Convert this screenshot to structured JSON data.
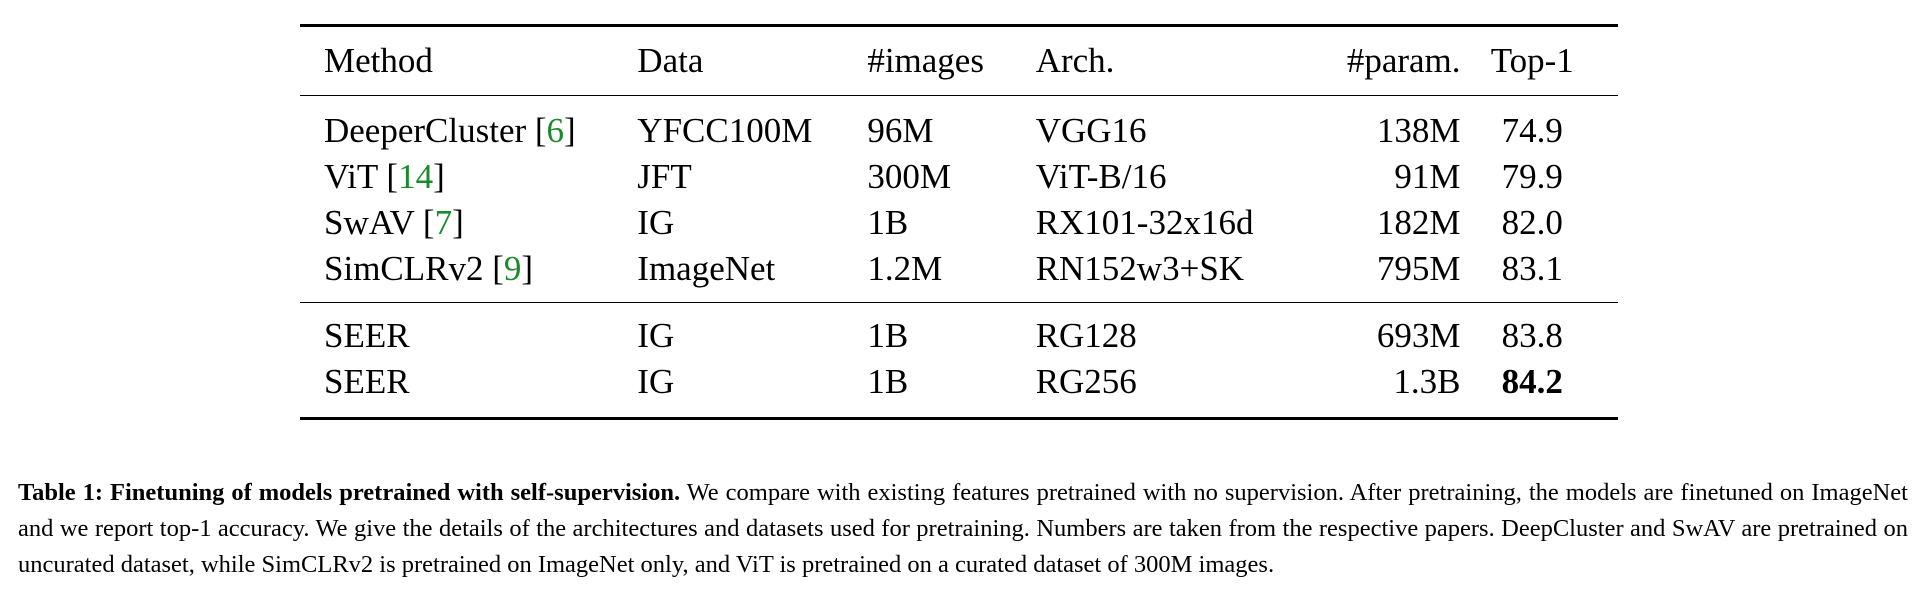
{
  "table": {
    "headers": [
      "Method",
      "Data",
      "#images",
      "Arch.",
      "#param.",
      "Top-1"
    ],
    "rows": [
      {
        "method": "DeeperCluster",
        "cite": "6",
        "data": "YFCC100M",
        "images": "96M",
        "arch": "VGG16",
        "param": "138M",
        "top1": "74.9"
      },
      {
        "method": "ViT",
        "cite": "14",
        "data": "JFT",
        "images": "300M",
        "arch": "ViT-B/16",
        "param": "91M",
        "top1": "79.9"
      },
      {
        "method": "SwAV",
        "cite": "7",
        "data": "IG",
        "images": "1B",
        "arch": "RX101-32x16d",
        "param": "182M",
        "top1": "82.0"
      },
      {
        "method": "SimCLRv2",
        "cite": "9",
        "data": "ImageNet",
        "images": "1.2M",
        "arch": "RN152w3+SK",
        "param": "795M",
        "top1": "83.1"
      },
      {
        "method": "SEER",
        "cite": "",
        "data": "IG",
        "images": "1B",
        "arch": "RG128",
        "param": "693M",
        "top1": "83.8"
      },
      {
        "method": "SEER",
        "cite": "",
        "data": "IG",
        "images": "1B",
        "arch": "RG256",
        "param": "1.3B",
        "top1": "84.2"
      }
    ]
  },
  "caption": {
    "label": "Table 1: Finetuning of models pretrained with self-supervision.",
    "text": " We compare with existing features pretrained with no supervision. After pretraining, the models are finetuned on ImageNet and we report top-1 accuracy. We give the details of the architectures and datasets used for pretraining. Numbers are taken from the respective papers. DeepCluster and SwAV are pretrained on uncurated dataset, while SimCLRv2 is pretrained on ImageNet only, and ViT is pretrained on a curated dataset of 300M images."
  }
}
